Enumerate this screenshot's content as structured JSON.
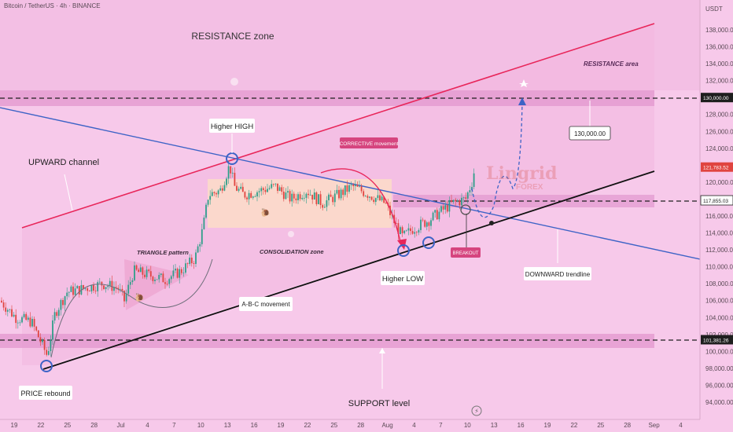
{
  "header": {
    "symbol": "Bitcoin / TetherUS · 4h · BINANCE",
    "currency": "USDT"
  },
  "watermark": {
    "brand": "Lingrid",
    "sub": "FOREX"
  },
  "colors": {
    "background": "#f7c9ea",
    "resistance_band": "#e39ad0",
    "channel_fill": "#f3b9df",
    "red_line": "#e8265a",
    "blue_line": "#3d63c6",
    "black_line": "#111111",
    "bull": "#2e9e89",
    "bear": "#e0443f",
    "consolidation_box": "#fbdcc8",
    "badge_pink": "#d6457f",
    "badge_dark": "#1e1e1e"
  },
  "labels": {
    "resistance_zone": "RESISTANCE zone",
    "resistance_area": "RESISTANCE area",
    "upward_channel": "UPWARD channel",
    "higher_high": "Higher HIGH",
    "corrective": "CORRECTIVE movement",
    "consolidation": "CONSOLIDATION zone",
    "triangle": "TRIANGLE pattern",
    "abc": "A-B-C movement",
    "higher_low": "Higher LOW",
    "breakout": "BREAKOUT",
    "downward_trendline": "DOWNWARD trendline",
    "target_130": "130,000.00",
    "price_rebound": "PRICE rebound",
    "support_level": "SUPPORT level"
  },
  "chart_data": {
    "type": "candlestick",
    "x_ticks": [
      "19",
      "22",
      "25",
      "28",
      "Jul",
      "4",
      "7",
      "10",
      "13",
      "16",
      "19",
      "22",
      "25",
      "28",
      "Aug",
      "4",
      "7",
      "10",
      "13",
      "16",
      "19",
      "22",
      "25",
      "28",
      "Sep",
      "4"
    ],
    "y_ticks": [
      94000,
      96000,
      98000,
      100000,
      102000,
      104000,
      106000,
      108000,
      110000,
      112000,
      114000,
      116000,
      118000,
      120000,
      122000,
      124000,
      126000,
      128000,
      130000,
      132000,
      134000,
      136000,
      138000
    ],
    "y_tick_labels": [
      "94,000.00",
      "96,000.00",
      "98,000.00",
      "100,000.00",
      "102,000.00",
      "104,000.00",
      "106,000.00",
      "108,000.00",
      "110,000.00",
      "112,000.00",
      "114,000.00",
      "116,000.00",
      "118,000.00",
      "120,000.00",
      "122,000.00",
      "124,000.00",
      "126,000.00",
      "128,000.00",
      "130,000.00",
      "132,000.00",
      "134,000.00",
      "136,000.00",
      "138,000.00"
    ],
    "ylim": [
      93000,
      140000
    ],
    "price_labels": [
      {
        "value": 130000,
        "text": "130,000.00",
        "style": "dark"
      },
      {
        "value": 121783.52,
        "text": "121,783.52",
        "style": "red"
      },
      {
        "value": 117855.03,
        "text": "117,855.03",
        "style": "outline"
      },
      {
        "value": 101381.26,
        "text": "101,381.26",
        "style": "dark"
      }
    ],
    "levels": {
      "resistance_level": 130000,
      "breakout_level": 117855.03,
      "support_level": 101381.26
    },
    "last_price": 121783.52
  }
}
